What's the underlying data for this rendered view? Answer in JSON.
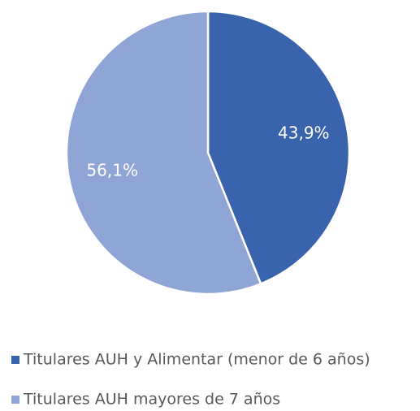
{
  "chart_data": {
    "type": "pie",
    "categories": [
      "Titulares AUH y Alimentar (menor de 6 años)",
      "Titulares AUH mayores de 7 años"
    ],
    "values": [
      43.9,
      56.1
    ],
    "value_labels": [
      "43,9%",
      "56,1%"
    ],
    "colors": [
      "#3a63ad",
      "#8fa5d6"
    ],
    "legend": "bottom"
  }
}
